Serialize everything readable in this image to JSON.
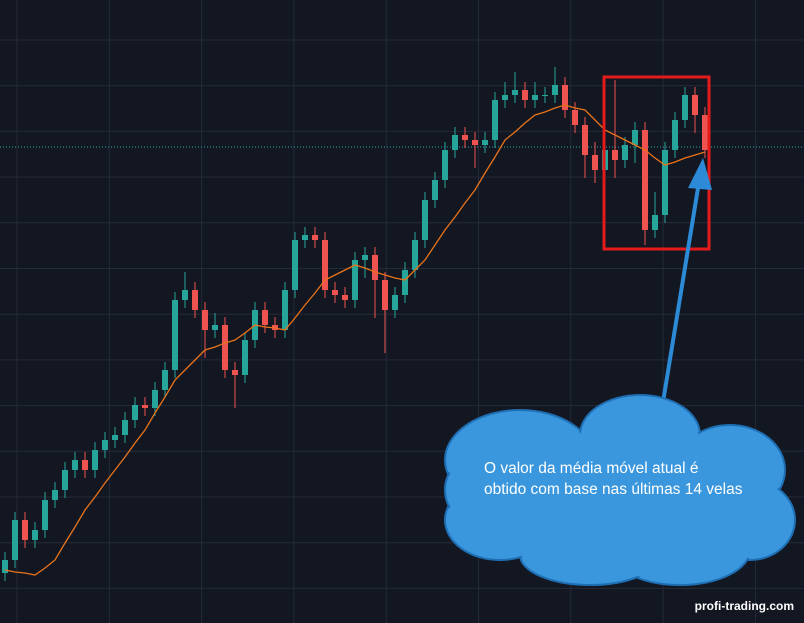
{
  "chart_data": {
    "type": "candlestick",
    "open": [
      5.0,
      6.3,
      10.3,
      8.3,
      9.3,
      12.3,
      13.3,
      15.3,
      16.3,
      15.3,
      17.3,
      18.3,
      18.8,
      20.3,
      21.8,
      21.5,
      23.3,
      25.3,
      32.3,
      33.3,
      31.3,
      29.3,
      29.8,
      25.3,
      24.8,
      28.3,
      31.3,
      29.8,
      29.3,
      33.3,
      38.3,
      38.8,
      38.3,
      33.3,
      32.8,
      32.3,
      36.3,
      36.8,
      34.3,
      31.3,
      32.8,
      35.3,
      38.3,
      42.3,
      44.3,
      47.3,
      48.8,
      48.3,
      47.8,
      48.3,
      52.3,
      52.8,
      53.3,
      52.3,
      52.8,
      52.8,
      53.8,
      51.3,
      49.8,
      46.8,
      45.3,
      47.3,
      46.3,
      47.8,
      49.3,
      39.3,
      40.8,
      47.3,
      50.3,
      52.8,
      50.8
    ],
    "high": [
      7.1,
      11.1,
      11.1,
      10.1,
      13.1,
      14.1,
      16.1,
      17.1,
      17.1,
      18.1,
      19.1,
      19.6,
      21.1,
      22.6,
      22.6,
      24.1,
      26.1,
      33.1,
      35.1,
      34.1,
      32.1,
      31.0,
      30.6,
      26.1,
      29.1,
      32.1,
      32.1,
      30.6,
      34.1,
      39.1,
      39.6,
      39.6,
      39.1,
      34.1,
      33.6,
      37.1,
      37.6,
      37.6,
      35.1,
      33.6,
      36.1,
      39.1,
      43.1,
      45.1,
      48.1,
      49.6,
      49.6,
      49.1,
      49.1,
      53.1,
      54.1,
      55.1,
      54.1,
      54.1,
      53.6,
      55.6,
      54.6,
      52.1,
      50.6,
      48.1,
      48.1,
      54.3,
      48.6,
      50.1,
      50.1,
      43.1,
      48.1,
      51.1,
      53.6,
      53.6,
      51.6
    ],
    "low": [
      4.2,
      5.5,
      7.5,
      7.5,
      8.5,
      11.5,
      12.5,
      14.5,
      14.5,
      14.5,
      16.5,
      17.5,
      18.0,
      19.5,
      20.7,
      20.7,
      22.5,
      24.5,
      31.5,
      30.5,
      26.5,
      28.5,
      24.5,
      21.5,
      24.0,
      27.5,
      29.0,
      28.5,
      28.5,
      32.5,
      37.5,
      37.5,
      32.5,
      32.0,
      31.5,
      31.5,
      34.5,
      30.5,
      27.0,
      30.5,
      32.0,
      34.5,
      37.5,
      41.5,
      43.5,
      46.5,
      47.5,
      45.5,
      47.0,
      47.5,
      51.5,
      52.0,
      51.5,
      51.5,
      52.0,
      52.0,
      50.5,
      49.0,
      44.5,
      44.0,
      44.5,
      44.5,
      45.5,
      46.0,
      37.8,
      38.5,
      40.0,
      46.5,
      49.5,
      49.0,
      46.5
    ],
    "close": [
      6.3,
      10.3,
      8.3,
      9.3,
      12.3,
      13.3,
      15.3,
      16.3,
      15.3,
      17.3,
      18.3,
      18.8,
      20.3,
      21.8,
      21.5,
      23.3,
      25.3,
      32.3,
      33.3,
      31.3,
      29.3,
      29.8,
      25.3,
      24.8,
      28.3,
      31.3,
      29.8,
      29.3,
      33.3,
      38.3,
      38.8,
      38.3,
      33.3,
      32.8,
      32.3,
      36.3,
      36.8,
      34.3,
      31.3,
      32.8,
      35.3,
      38.3,
      42.3,
      44.3,
      47.3,
      48.8,
      48.3,
      47.8,
      48.3,
      52.3,
      52.8,
      53.3,
      52.3,
      52.8,
      52.8,
      53.8,
      51.3,
      49.8,
      46.8,
      45.3,
      47.3,
      46.3,
      47.8,
      49.3,
      39.3,
      40.8,
      47.3,
      50.3,
      52.8,
      50.8,
      47.3
    ],
    "moving_average": {
      "color": "#e8731a",
      "values": [
        5.3,
        5.1,
        5.0,
        4.8,
        5.5,
        6.3,
        8.0,
        9.6,
        11.3,
        12.6,
        14.0,
        15.3,
        16.6,
        18.0,
        19.3,
        21.0,
        22.6,
        24.3,
        25.3,
        26.3,
        27.3,
        27.6,
        28.0,
        28.3,
        29.0,
        29.8,
        29.6,
        29.5,
        29.3,
        30.5,
        31.8,
        33.0,
        34.3,
        34.8,
        35.3,
        35.8,
        35.5,
        35.1,
        34.8,
        34.5,
        34.3,
        35.3,
        36.3,
        37.8,
        39.3,
        40.6,
        42.0,
        43.3,
        45.0,
        46.6,
        48.3,
        49.1,
        50.0,
        50.8,
        51.1,
        51.5,
        51.8,
        51.5,
        51.3,
        50.3,
        49.3,
        48.8,
        48.3,
        47.8,
        47.3,
        46.5,
        45.8,
        46.1,
        46.5,
        46.8,
        47.1
      ]
    },
    "price_line": 47.6,
    "ylim": [
      0,
      60
    ],
    "colors": {
      "up": "#26a69a",
      "down": "#ef5350"
    },
    "grid": true,
    "annotation": "O valor da média móvel atual é obtido com base nas últimas 14 velas",
    "watermark": "profi-trading.com"
  }
}
